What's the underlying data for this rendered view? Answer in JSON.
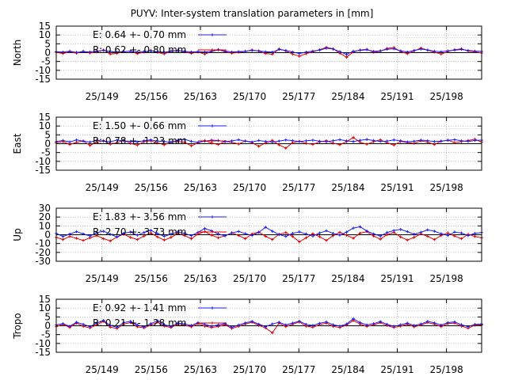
{
  "chart_data": {
    "type": "line",
    "title": "PUYV: Inter-system translation parameters in [mm]",
    "x_tick_labels": [
      "25/149",
      "25/156",
      "25/163",
      "25/170",
      "25/177",
      "25/184",
      "25/191",
      "25/198"
    ],
    "x_tick_values": [
      149,
      156,
      163,
      170,
      177,
      184,
      191,
      198
    ],
    "xlim": [
      142.5,
      203
    ],
    "grid": true,
    "highlight_region_start": 191,
    "colors": {
      "E": "#1a1aff",
      "R": "#e60000",
      "zero": "#000000",
      "grid": "#999999"
    },
    "panels": [
      {
        "ylabel": "North",
        "ylim": [
          -15,
          15
        ],
        "y_ticks": [
          15,
          10,
          5,
          0,
          -5,
          -10,
          -15
        ],
        "legend": [
          {
            "series": "E",
            "text": "E:   0.64 +- 0.70 mm"
          },
          {
            "series": "R",
            "text": "R:   0.62 +- 0.80 mm"
          }
        ],
        "series": {
          "E": [
            0.5,
            0.3,
            0.8,
            0.2,
            0.6,
            0.4,
            0.9,
            1.2,
            0.7,
            0.3,
            0.5,
            0.8,
            0.4,
            0.6,
            1.0,
            0.5,
            0.2,
            0.9,
            1.1,
            0.7,
            0.4,
            0.6,
            0.3,
            0.8,
            1.5,
            0.9,
            0.4,
            0.6,
            0.8,
            1.2,
            1.0,
            0.5,
            0.3,
            1.8,
            1.2,
            0.4,
            -0.5,
            0.3,
            0.9,
            1.4,
            2.5,
            2.0,
            0.6,
            -1.0,
            0.8,
            1.3,
            1.6,
            0.7,
            1.0,
            1.9,
            2.2,
            1.0,
            0.4,
            1.2,
            2.0,
            1.5,
            0.8,
            0.5,
            1.0,
            1.4,
            1.8,
            1.2,
            0.9,
            0.7
          ],
          "R": [
            0.2,
            -0.5,
            0.5,
            -0.3,
            0.8,
            -0.2,
            0.4,
            1.5,
            -0.8,
            -0.4,
            0.6,
            0.9,
            -0.6,
            0.3,
            1.2,
            0.1,
            -0.7,
            0.8,
            1.3,
            0.4,
            -0.4,
            0.3,
            -0.8,
            0.6,
            1.8,
            0.5,
            -0.3,
            0.2,
            0.7,
            1.5,
            0.9,
            -0.5,
            -0.9,
            2.1,
            1.0,
            -0.8,
            -2.0,
            -0.6,
            0.5,
            1.6,
            3.0,
            2.2,
            -0.3,
            -2.6,
            0.4,
            1.5,
            1.9,
            0.2,
            0.8,
            2.4,
            2.9,
            0.6,
            -0.6,
            1.0,
            2.6,
            1.4,
            0.3,
            -0.8,
            0.6,
            1.7,
            2.2,
            0.9,
            0.5,
            -0.2
          ]
        }
      },
      {
        "ylabel": "East",
        "ylim": [
          -15,
          15
        ],
        "y_ticks": [
          15,
          10,
          5,
          0,
          -5,
          -10,
          -15
        ],
        "legend": [
          {
            "series": "E",
            "text": "E:   1.50 +- 0.66 mm"
          },
          {
            "series": "R",
            "text": "R:   0.78 +- 1.23 mm"
          }
        ],
        "series": {
          "E": [
            1.2,
            1.8,
            1.0,
            2.1,
            1.5,
            0.9,
            1.9,
            1.4,
            1.1,
            2.0,
            1.6,
            1.3,
            1.0,
            1.7,
            2.2,
            1.5,
            1.2,
            0.8,
            1.9,
            2.5,
            1.3,
            0.7,
            1.4,
            2.0,
            1.8,
            1.1,
            1.6,
            2.2,
            1.5,
            1.0,
            1.8,
            1.3,
            0.9,
            1.5,
            2.1,
            1.7,
            1.2,
            1.6,
            2.0,
            1.4,
            1.1,
            1.7,
            2.3,
            1.6,
            1.2,
            1.9,
            2.4,
            1.8,
            1.3,
            1.5,
            2.1,
            1.6,
            1.0,
            1.4,
            2.0,
            1.7,
            1.2,
            1.5,
            1.9,
            2.3,
            1.6,
            1.3,
            1.8,
            2.0
          ],
          "R": [
            0.5,
            1.2,
            -0.5,
            0.8,
            1.5,
            -1.0,
            0.9,
            1.8,
            -0.3,
            0.6,
            2.0,
            0.2,
            -0.8,
            1.1,
            1.6,
            0.4,
            -0.6,
            0.9,
            1.3,
            0.7,
            -1.2,
            0.5,
            1.8,
            0.3,
            -0.5,
            1.2,
            0.8,
            -0.2,
            1.5,
            0.6,
            -1.5,
            0.4,
            1.9,
            -0.7,
            -2.5,
            0.6,
            1.4,
            0.2,
            -0.4,
            1.0,
            1.7,
            0.3,
            -0.6,
            1.2,
            3.5,
            0.8,
            -0.3,
            1.1,
            2.2,
            0.5,
            -0.8,
            1.3,
            0.7,
            0.2,
            1.6,
            0.9,
            -0.5,
            1.4,
            2.0,
            0.6,
            1.1,
            1.8,
            2.5,
            0.9
          ]
        }
      },
      {
        "ylabel": "Up",
        "ylim": [
          -30,
          30
        ],
        "y_ticks": [
          30,
          20,
          10,
          0,
          -10,
          -20,
          -30
        ],
        "legend": [
          {
            "series": "E",
            "text": "E:   1.83 +- 3.56 mm"
          },
          {
            "series": "R",
            "text": "R:   2.70 +- 3.73 mm"
          }
        ],
        "series": {
          "E": [
            1.5,
            -2.0,
            0.8,
            3.5,
            1.0,
            -1.5,
            2.2,
            4.0,
            0.5,
            -2.5,
            1.8,
            3.0,
            -0.5,
            2.5,
            5.0,
            1.2,
            -1.8,
            0.6,
            3.2,
            1.5,
            -1.0,
            2.8,
            7.0,
            4.5,
            0.8,
            -1.2,
            2.0,
            3.8,
            1.2,
            -0.8,
            2.6,
            8.5,
            4.0,
            0.2,
            -2.0,
            1.5,
            3.2,
            0.8,
            -1.5,
            2.0,
            4.5,
            1.5,
            -0.5,
            3.0,
            7.5,
            9.0,
            4.2,
            1.0,
            -1.5,
            2.5,
            4.8,
            6.0,
            3.5,
            0.5,
            2.8,
            5.5,
            4.0,
            1.2,
            -0.8,
            3.0,
            2.0,
            -1.0,
            1.5,
            2.5
          ],
          "R": [
            -3.0,
            -5.5,
            -2.0,
            -4.0,
            -6.5,
            -3.5,
            -1.0,
            -4.5,
            -7.0,
            -2.5,
            0.5,
            -3.0,
            -5.5,
            -1.5,
            2.0,
            -2.5,
            -6.0,
            -3.0,
            1.5,
            -1.0,
            -4.5,
            0.8,
            3.5,
            -0.5,
            -3.5,
            -1.2,
            2.2,
            -0.8,
            -4.5,
            1.0,
            3.0,
            -1.8,
            -5.5,
            0.5,
            2.5,
            -2.0,
            -8.0,
            -3.5,
            1.2,
            -2.2,
            -6.5,
            -1.0,
            2.8,
            -0.5,
            -4.0,
            1.8,
            3.5,
            -1.5,
            -5.0,
            0.2,
            2.6,
            -2.5,
            -6.0,
            -3.0,
            1.0,
            -1.8,
            -5.5,
            -0.8,
            2.0,
            -1.5,
            -4.5,
            0.5,
            -2.0,
            -3.5
          ]
        }
      },
      {
        "ylabel": "Tropo",
        "ylim": [
          -15,
          15
        ],
        "y_ticks": [
          15,
          10,
          5,
          0,
          -5,
          -10,
          -15
        ],
        "legend": [
          {
            "series": "E",
            "text": "E:   0.92 +- 1.41 mm"
          },
          {
            "series": "R",
            "text": "R:   0.21 +- 1.28 mm"
          }
        ],
        "series": {
          "E": [
            0.5,
            1.2,
            -0.3,
            2.0,
            0.8,
            -0.5,
            1.5,
            3.0,
            0.2,
            -0.8,
            1.8,
            2.5,
            0.4,
            -0.6,
            1.2,
            2.8,
            0.6,
            -0.4,
            1.5,
            1.0,
            0.2,
            1.8,
            0.8,
            -0.3,
            0.5,
            1.2,
            -0.8,
            0.4,
            1.6,
            2.5,
            0.9,
            -0.5,
            1.0,
            2.0,
            0.5,
            1.5,
            2.6,
            0.8,
            0.2,
            1.4,
            2.2,
            0.6,
            -0.2,
            1.0,
            4.0,
            1.8,
            0.5,
            1.2,
            2.4,
            0.8,
            -0.3,
            0.6,
            1.5,
            0.2,
            1.0,
            2.5,
            1.6,
            0.4,
            1.8,
            2.2,
            0.6,
            -0.5,
            0.8,
            1.0
          ],
          "R": [
            -0.5,
            0.8,
            -1.0,
            1.5,
            -0.3,
            -1.2,
            0.5,
            2.5,
            -0.8,
            -1.5,
            1.0,
            1.8,
            -0.6,
            -1.2,
            0.4,
            2.0,
            -0.2,
            -1.0,
            0.8,
            0.3,
            -0.6,
            1.2,
            -0.2,
            -1.0,
            -0.4,
            0.6,
            -1.5,
            -0.3,
            1.0,
            2.0,
            0.2,
            -1.2,
            -4.0,
            1.5,
            -0.5,
            0.8,
            2.2,
            -0.2,
            -0.8,
            0.6,
            1.5,
            -0.3,
            -1.0,
            0.4,
            3.0,
            1.0,
            -0.4,
            0.5,
            1.8,
            0.1,
            -1.0,
            -0.2,
            0.9,
            -0.6,
            0.4,
            1.8,
            0.9,
            -0.5,
            1.2,
            1.5,
            -0.2,
            -1.4,
            0.3,
            0.5
          ]
        }
      }
    ]
  }
}
